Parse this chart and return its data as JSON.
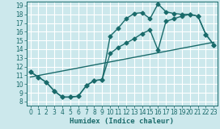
{
  "xlabel": "Humidex (Indice chaleur)",
  "bg_color": "#cce8ec",
  "grid_color": "#ffffff",
  "line_color": "#1a6b6b",
  "xlim": [
    -0.5,
    23.5
  ],
  "ylim": [
    7.5,
    19.5
  ],
  "xticks": [
    0,
    1,
    2,
    3,
    4,
    5,
    6,
    7,
    8,
    9,
    10,
    11,
    12,
    13,
    14,
    15,
    16,
    17,
    18,
    19,
    20,
    21,
    22,
    23
  ],
  "yticks": [
    8,
    9,
    10,
    11,
    12,
    13,
    14,
    15,
    16,
    17,
    18,
    19
  ],
  "line1_x": [
    0,
    1,
    2,
    3,
    4,
    5,
    6,
    7,
    8,
    9,
    10,
    11,
    12,
    13,
    14,
    15,
    16,
    17,
    18,
    19,
    20,
    21,
    22,
    23
  ],
  "line1_y": [
    11.4,
    10.8,
    10.2,
    9.2,
    8.5,
    8.5,
    8.6,
    9.8,
    10.4,
    10.5,
    15.5,
    16.4,
    17.5,
    18.1,
    18.2,
    17.5,
    19.2,
    18.3,
    18.1,
    18.0,
    18.0,
    17.8,
    15.7,
    14.5
  ],
  "line2_x": [
    0,
    1,
    2,
    3,
    4,
    5,
    6,
    7,
    8,
    9,
    10,
    11,
    12,
    13,
    14,
    15,
    16,
    17,
    18,
    19,
    20,
    21,
    22,
    23
  ],
  "line2_y": [
    11.4,
    10.8,
    10.2,
    9.2,
    8.5,
    8.5,
    8.6,
    9.8,
    10.4,
    10.5,
    13.5,
    14.2,
    14.7,
    15.2,
    15.8,
    16.2,
    13.9,
    17.2,
    17.5,
    17.8,
    18.0,
    17.8,
    15.7,
    14.5
  ],
  "line3_x": [
    0,
    23
  ],
  "line3_y": [
    10.8,
    14.8
  ],
  "marker": "D",
  "markersize": 2.5,
  "linewidth": 1.0,
  "tick_fontsize": 5.5,
  "label_fontsize": 6.5
}
